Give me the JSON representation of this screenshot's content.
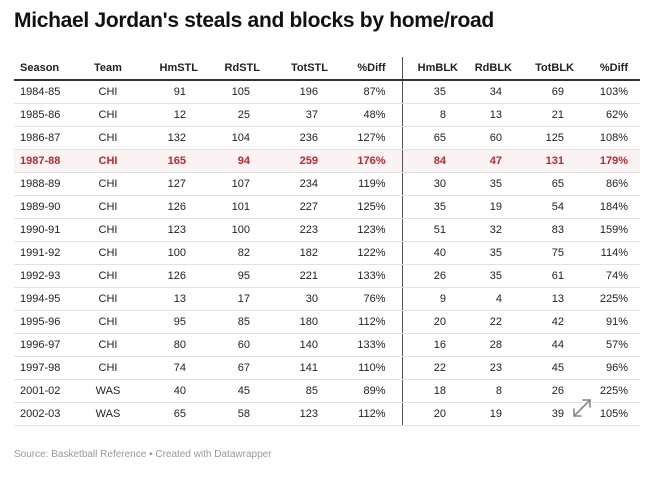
{
  "chart_data": {
    "type": "table",
    "title": "Michael Jordan's steals and blocks by home/road",
    "columns": [
      "Season",
      "Team",
      "HmSTL",
      "RdSTL",
      "TotSTL",
      "%Diff",
      "HmBLK",
      "RdBLK",
      "TotBLK",
      "%Diff"
    ],
    "highlight_row": "1987-88",
    "highlight_color": "#c0262d",
    "rows": [
      [
        "1984-85",
        "CHI",
        "91",
        "105",
        "196",
        "87%",
        "35",
        "34",
        "69",
        "103%"
      ],
      [
        "1985-86",
        "CHI",
        "12",
        "25",
        "37",
        "48%",
        "8",
        "13",
        "21",
        "62%"
      ],
      [
        "1986-87",
        "CHI",
        "132",
        "104",
        "236",
        "127%",
        "65",
        "60",
        "125",
        "108%"
      ],
      [
        "1987-88",
        "CHI",
        "165",
        "94",
        "259",
        "176%",
        "84",
        "47",
        "131",
        "179%"
      ],
      [
        "1988-89",
        "CHI",
        "127",
        "107",
        "234",
        "119%",
        "30",
        "35",
        "65",
        "86%"
      ],
      [
        "1989-90",
        "CHI",
        "126",
        "101",
        "227",
        "125%",
        "35",
        "19",
        "54",
        "184%"
      ],
      [
        "1990-91",
        "CHI",
        "123",
        "100",
        "223",
        "123%",
        "51",
        "32",
        "83",
        "159%"
      ],
      [
        "1991-92",
        "CHI",
        "100",
        "82",
        "182",
        "122%",
        "40",
        "35",
        "75",
        "114%"
      ],
      [
        "1992-93",
        "CHI",
        "126",
        "95",
        "221",
        "133%",
        "26",
        "35",
        "61",
        "74%"
      ],
      [
        "1994-95",
        "CHI",
        "13",
        "17",
        "30",
        "76%",
        "9",
        "4",
        "13",
        "225%"
      ],
      [
        "1995-96",
        "CHI",
        "95",
        "85",
        "180",
        "112%",
        "20",
        "22",
        "42",
        "91%"
      ],
      [
        "1996-97",
        "CHI",
        "80",
        "60",
        "140",
        "133%",
        "16",
        "28",
        "44",
        "57%"
      ],
      [
        "1997-98",
        "CHI",
        "74",
        "67",
        "141",
        "110%",
        "22",
        "23",
        "45",
        "96%"
      ],
      [
        "2001-02",
        "WAS",
        "40",
        "45",
        "85",
        "89%",
        "18",
        "8",
        "26",
        "225%"
      ],
      [
        "2002-03",
        "WAS",
        "65",
        "58",
        "123",
        "112%",
        "20",
        "19",
        "39",
        "105%"
      ]
    ]
  },
  "footer": {
    "source": "Source: Basketball Reference • Created with Datawrapper"
  },
  "icons": {
    "expand": "expand-arrows-icon"
  }
}
